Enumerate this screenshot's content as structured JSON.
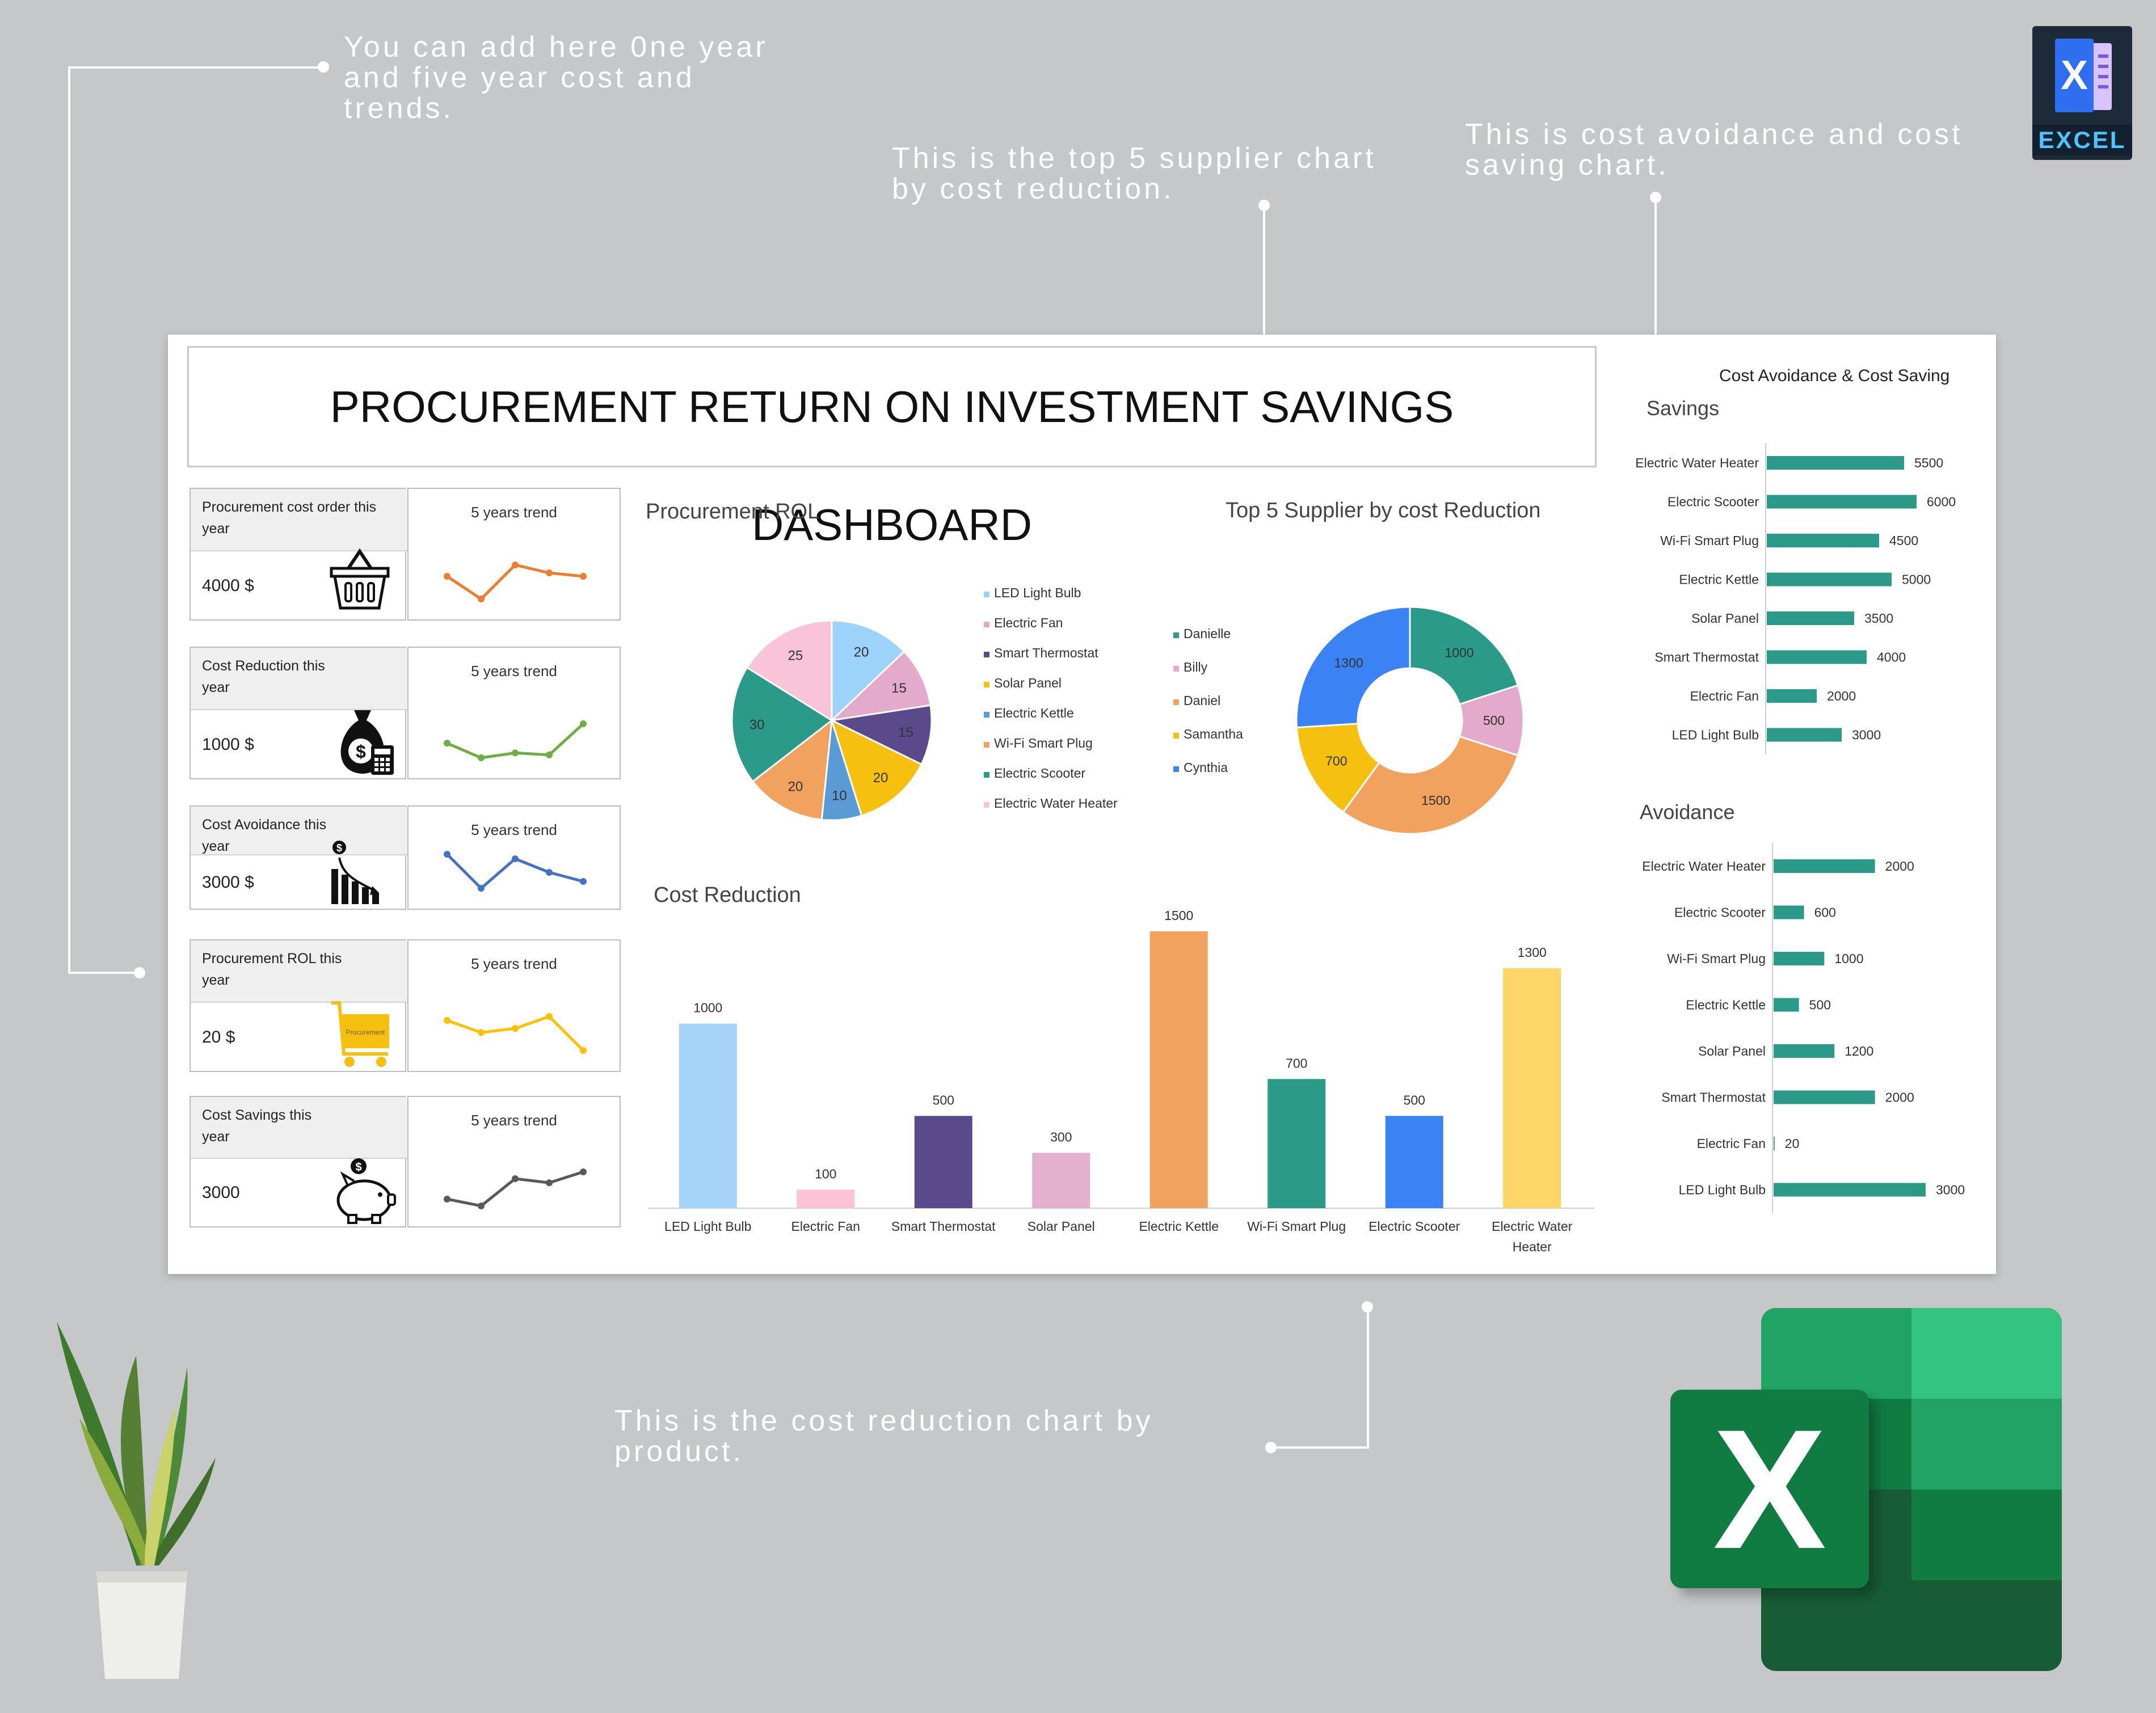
{
  "callouts": {
    "trends": "You can add here 0ne year and five year cost and trends.",
    "suppliers": "This is the top 5 supplier chart by cost reduction.",
    "avoidance": "This is cost avoidance and cost saving chart.",
    "cost_reduction": "This is the cost reduction chart by product."
  },
  "badge": {
    "letter": "X",
    "label": "EXCEL"
  },
  "excel_logo": {
    "letter": "X"
  },
  "dashboard": {
    "title": "PROCUREMENT RETURN ON INVESTMENT SAVINGS DASHBOARD",
    "kpis": [
      {
        "label1": "Procurement cost order this",
        "label2": "year",
        "value": "4000 $",
        "trend_label": "5 years trend",
        "icon": "basket-icon",
        "color": "#ed7d31",
        "trend": [
          3,
          1,
          4,
          3.3,
          3
        ]
      },
      {
        "label1": "Cost Reduction this",
        "label2": "year",
        "value": "1000 $",
        "trend_label": "5 years trend",
        "icon": "money-bag-icon",
        "color": "#70ad47",
        "trend": [
          3,
          1.5,
          2,
          1.8,
          5
        ]
      },
      {
        "label1": "Cost Avoidance this",
        "label2": "year",
        "value": "3000 $",
        "trend_label": "5 years trend",
        "icon": "declining-bars-icon",
        "color": "#4472c4",
        "trend": [
          3,
          1.5,
          2.8,
          2.2,
          1.8
        ]
      },
      {
        "label1": "Procurement ROL this",
        "label2": "year",
        "value": "20 $",
        "trend_label": "5 years trend",
        "icon": "shopping-cart-icon",
        "color": "#ffc000",
        "trend": [
          3,
          2.4,
          2.6,
          3.2,
          1.5
        ],
        "cart_text": "Procurement"
      },
      {
        "label1": "Cost Savings this",
        "label2": "year",
        "value": "3000",
        "trend_label": "5 years trend",
        "icon": "piggy-bank-icon",
        "color": "#595959",
        "trend": [
          1.5,
          1,
          3,
          2.7,
          3.5
        ]
      }
    ]
  },
  "chart_data": [
    {
      "type": "pie",
      "title": "Procurement ROL",
      "categories": [
        "LED Light Bulb",
        "Electric Fan",
        "Smart Thermostat",
        "Solar Panel",
        "Electric Kettle",
        "Wi-Fi Smart Plug",
        "Electric Scooter",
        "Electric Water Heater"
      ],
      "values": [
        20,
        15,
        15,
        20,
        10,
        20,
        30,
        25
      ],
      "colors": [
        "#9dd2fb",
        "#e3aacb",
        "#5a4a8c",
        "#f5c010",
        "#5b9bd5",
        "#f0a25e",
        "#2c9a88",
        "#f9c4d8"
      ],
      "legend_position": "right"
    },
    {
      "type": "pie",
      "subtype": "donut",
      "title": "Top 5 Supplier by cost Reduction",
      "categories": [
        "Danielle",
        "Billy",
        "Daniel",
        "Samantha",
        "Cynthia"
      ],
      "values": [
        1000,
        500,
        1500,
        700,
        1300
      ],
      "colors": [
        "#2c9a88",
        "#e3aacb",
        "#f0a25e",
        "#f5c010",
        "#3b82f5"
      ],
      "legend_position": "left"
    },
    {
      "type": "bar",
      "title": "Cost Reduction",
      "categories": [
        "LED Light Bulb",
        "Electric Fan",
        "Smart Thermostat",
        "Solar Panel",
        "Electric Kettle",
        "Wi-Fi Smart Plug",
        "Electric Scooter",
        "Electric Water Heater"
      ],
      "values": [
        1000,
        100,
        500,
        300,
        1500,
        700,
        500,
        1300
      ],
      "colors": [
        "#a6d3fa",
        "#fcc3d7",
        "#5a4a8c",
        "#e3b1cd",
        "#f0a25e",
        "#2c9a88",
        "#3b82f5",
        "#fed668"
      ],
      "ylim": [
        0,
        1500
      ],
      "grid": false
    },
    {
      "type": "bar",
      "orientation": "horizontal",
      "title": "Cost Avoidance & Cost Saving",
      "subtitle": "Savings",
      "categories": [
        "Electric Water Heater",
        "Electric Scooter",
        "Wi-Fi Smart Plug",
        "Electric Kettle",
        "Solar Panel",
        "Smart Thermostat",
        "Electric Fan",
        "LED Light Bulb"
      ],
      "values": [
        5500,
        6000,
        4500,
        5000,
        3500,
        4000,
        2000,
        3000
      ],
      "color": "#2c9a88"
    },
    {
      "type": "bar",
      "orientation": "horizontal",
      "subtitle": "Avoidance",
      "categories": [
        "Electric Water Heater",
        "Electric Scooter",
        "Wi-Fi Smart Plug",
        "Electric Kettle",
        "Solar Panel",
        "Smart Thermostat",
        "Electric Fan",
        "LED Light Bulb"
      ],
      "values": [
        2000,
        600,
        1000,
        500,
        1200,
        2000,
        20,
        3000
      ],
      "color": "#2c9a88"
    }
  ]
}
